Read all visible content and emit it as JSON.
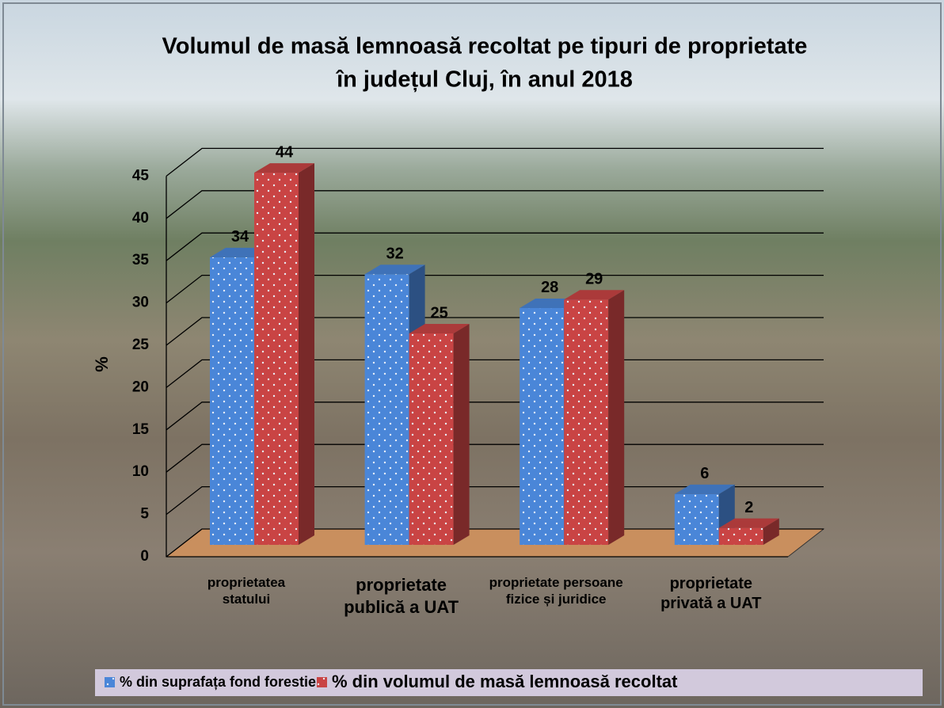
{
  "chart_data": {
    "type": "bar3d",
    "title": "Volumul de masă lemnoasă recoltat pe tipuri de proprietate",
    "subtitle": "în județul Cluj, în anul 2018",
    "ylabel": "%",
    "categories": [
      "proprietatea statului",
      "proprietate publică a UAT",
      "proprietate persoane fizice și juridice",
      "proprietate privată a UAT"
    ],
    "series": [
      {
        "name": "% din suprafața fond forestier",
        "color": "#4a86d8",
        "values": [
          34,
          32,
          28,
          6
        ]
      },
      {
        "name": "% din volumul de masă lemnoasă recoltat",
        "color": "#c94444",
        "values": [
          44,
          25,
          29,
          2
        ]
      }
    ],
    "ylim": [
      0,
      45
    ],
    "yticks": [
      0,
      5,
      10,
      15,
      20,
      25,
      30,
      35,
      40,
      45
    ],
    "grid": true
  }
}
